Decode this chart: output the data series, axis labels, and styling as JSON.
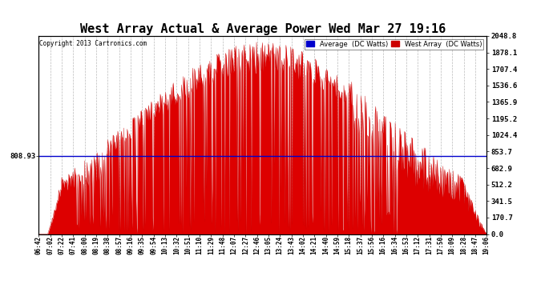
{
  "title": "West Array Actual & Average Power Wed Mar 27 19:16",
  "copyright": "Copyright 2013 Cartronics.com",
  "average_value": 808.93,
  "y_max": 2048.8,
  "y_min": 0.0,
  "y_ticks": [
    0.0,
    170.7,
    341.5,
    512.2,
    682.9,
    853.7,
    1024.4,
    1195.2,
    1365.9,
    1536.6,
    1707.4,
    1878.1,
    2048.8
  ],
  "left_y_label": "808.93",
  "legend_avg_label": "Average  (DC Watts)",
  "legend_west_label": "West Array  (DC Watts)",
  "avg_color": "#0000cc",
  "west_color": "#cc0000",
  "fill_color": "#dd0000",
  "bg_color": "#ffffff",
  "grid_color": "#aaaaaa",
  "title_fontsize": 11,
  "x_labels": [
    "06:42",
    "07:02",
    "07:22",
    "07:41",
    "08:00",
    "08:19",
    "08:38",
    "08:57",
    "09:16",
    "09:35",
    "09:54",
    "10:13",
    "10:32",
    "10:51",
    "11:10",
    "11:29",
    "11:48",
    "12:07",
    "12:27",
    "12:46",
    "13:05",
    "13:24",
    "13:43",
    "14:02",
    "14:21",
    "14:40",
    "14:59",
    "15:18",
    "15:37",
    "15:56",
    "16:16",
    "16:34",
    "16:53",
    "17:12",
    "17:31",
    "17:50",
    "18:09",
    "18:28",
    "18:47",
    "19:06"
  ],
  "figsize": [
    6.9,
    3.75
  ],
  "dpi": 100
}
